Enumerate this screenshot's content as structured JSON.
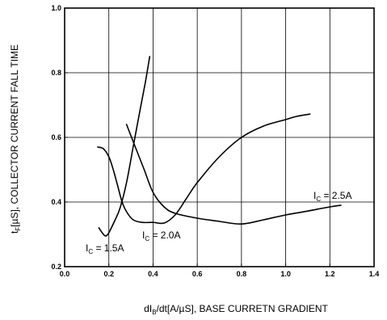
{
  "chart_data": {
    "type": "line",
    "xlabel": {
      "main": "dI",
      "sub": "B",
      "rest": "/dt[A/µS], BASE CURRETN GRADIENT"
    },
    "ylabel": {
      "main": "t",
      "sub": "F",
      "rest": "[µS], COLLECTOR CURRENT FALL TIME"
    },
    "xlim": [
      0.0,
      1.4
    ],
    "ylim": [
      0.2,
      1.0
    ],
    "x_ticks": [
      0.0,
      0.2,
      0.4,
      0.6,
      0.8,
      1.0,
      1.2,
      1.4
    ],
    "y_ticks": [
      0.2,
      0.4,
      0.6,
      0.8,
      1.0
    ],
    "x_tick_labels": [
      "0.0",
      "0.2",
      "0.4",
      "0.6",
      "0.8",
      "1.0",
      "1.2",
      "1.4"
    ],
    "y_tick_labels": [
      "0.2",
      "0.4",
      "0.6",
      "0.8",
      "1.0"
    ],
    "grid": true,
    "series": [
      {
        "name": "I_C = 1.5A",
        "label": {
          "main": "I",
          "sub": "C",
          "rest": " = 1.5A"
        },
        "x": [
          0.155,
          0.17,
          0.185,
          0.2,
          0.225,
          0.25,
          0.28,
          0.31,
          0.34,
          0.365,
          0.385
        ],
        "y": [
          0.32,
          0.305,
          0.295,
          0.305,
          0.34,
          0.38,
          0.46,
          0.57,
          0.68,
          0.77,
          0.85
        ]
      },
      {
        "name": "I_C = 2.0A",
        "label": {
          "main": "I",
          "sub": "C",
          "rest": " = 2.0A"
        },
        "x": [
          0.15,
          0.175,
          0.2,
          0.22,
          0.24,
          0.26,
          0.28,
          0.31,
          0.35,
          0.4,
          0.45,
          0.5,
          0.55,
          0.6,
          0.7,
          0.8,
          0.9,
          1.0,
          1.05,
          1.11
        ],
        "y": [
          0.57,
          0.565,
          0.54,
          0.5,
          0.45,
          0.4,
          0.37,
          0.345,
          0.337,
          0.337,
          0.335,
          0.36,
          0.41,
          0.46,
          0.54,
          0.6,
          0.635,
          0.655,
          0.665,
          0.672
        ]
      },
      {
        "name": "I_C = 2.5A",
        "label": {
          "main": "I",
          "sub": "C",
          "rest": " = 2.5A"
        },
        "x": [
          0.28,
          0.32,
          0.36,
          0.4,
          0.45,
          0.5,
          0.6,
          0.7,
          0.8,
          0.9,
          1.0,
          1.1,
          1.2,
          1.25
        ],
        "y": [
          0.64,
          0.57,
          0.5,
          0.43,
          0.385,
          0.365,
          0.35,
          0.34,
          0.332,
          0.345,
          0.36,
          0.372,
          0.385,
          0.39
        ]
      }
    ]
  }
}
